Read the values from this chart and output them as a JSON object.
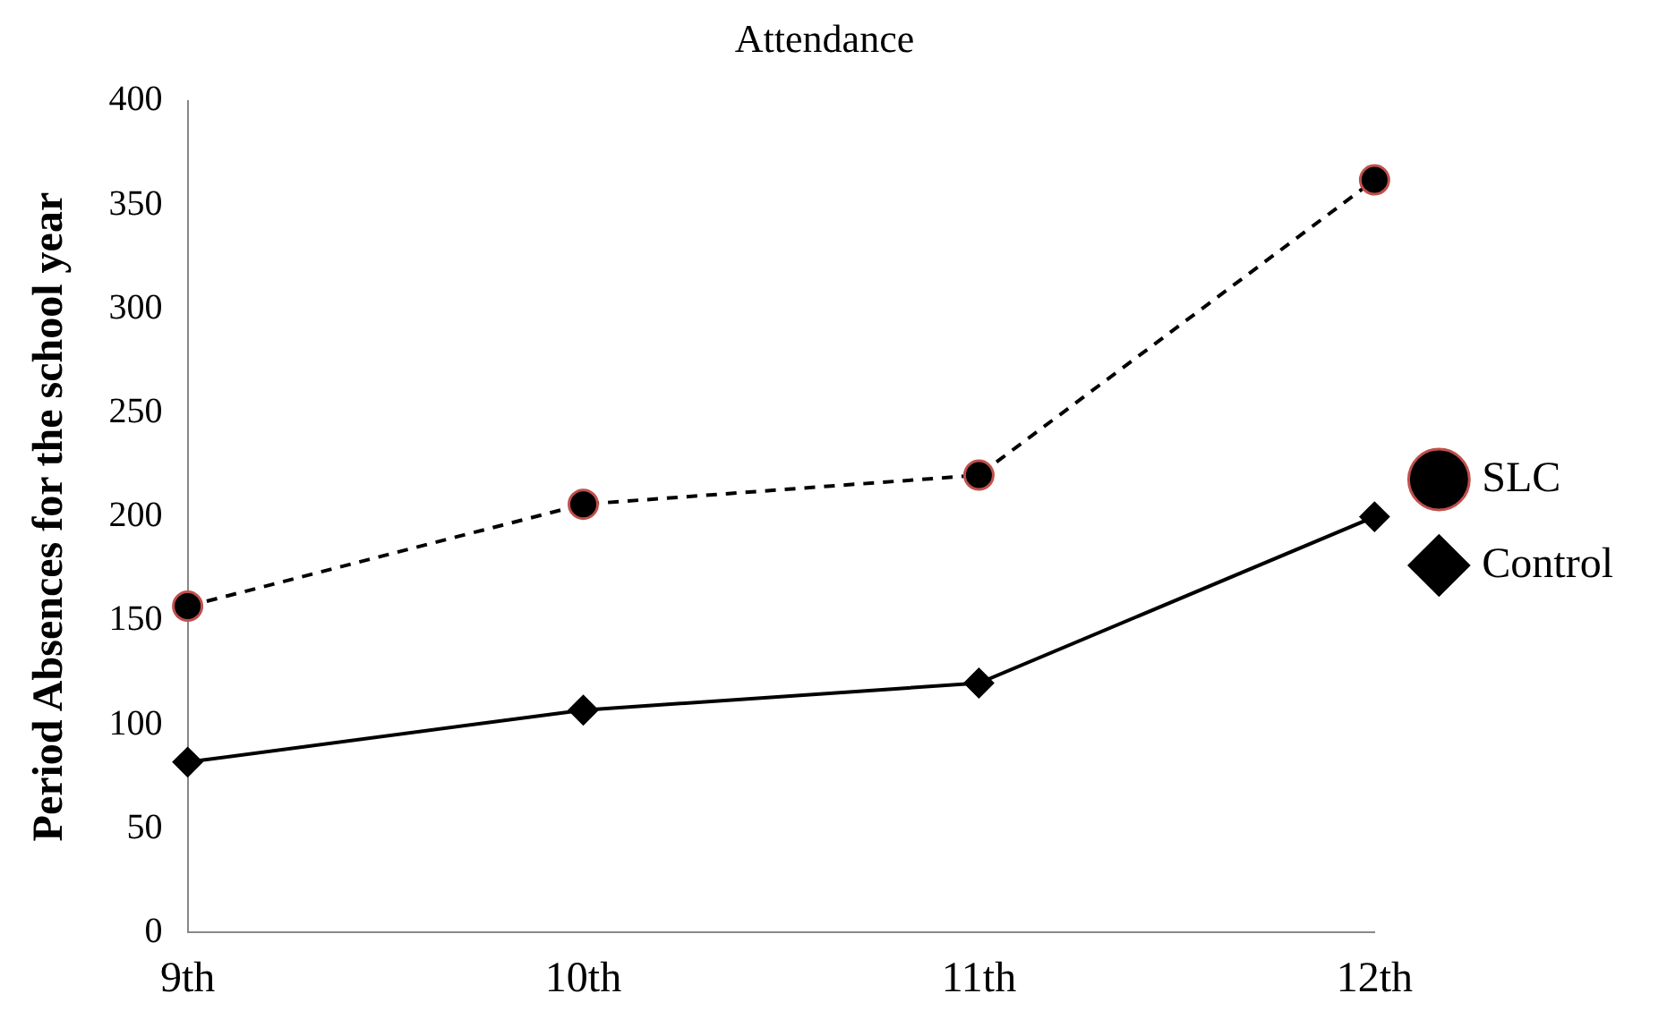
{
  "chart_data": {
    "type": "line",
    "title": "Attendance",
    "ylabel": "Period Absences for the school year",
    "categories": [
      "9th",
      "10th",
      "11th",
      "12th"
    ],
    "series": [
      {
        "name": "SLC",
        "color": "#000000",
        "values": [
          157,
          206,
          220,
          362
        ],
        "marker": "circle",
        "line_style": "dashed"
      },
      {
        "name": "Control",
        "color": "#000000",
        "values": [
          82,
          107,
          120,
          200
        ],
        "marker": "diamond",
        "line_style": "solid"
      }
    ],
    "ylim": [
      0,
      400
    ],
    "yticks": [
      0,
      50,
      100,
      150,
      200,
      250,
      300,
      350,
      400
    ],
    "grid": false,
    "legend": "right"
  }
}
